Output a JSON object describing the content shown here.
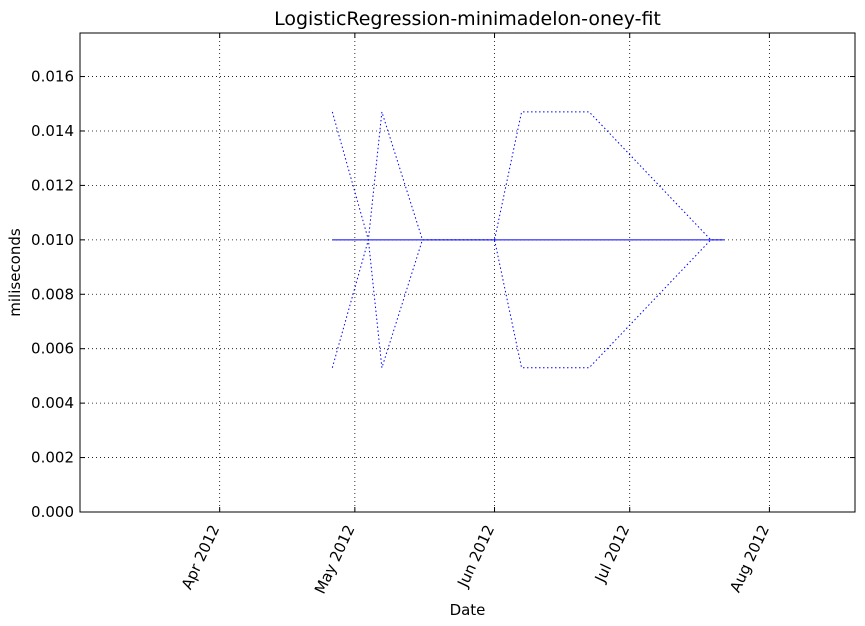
{
  "chart_data": {
    "type": "line",
    "title": "LogisticRegression-minimadelon-oney-fit",
    "xlabel": "Date",
    "ylabel": "miliseconds",
    "x_axis_kind": "date",
    "xlim": [
      "2012-03-01",
      "2012-08-20"
    ],
    "ylim": [
      0,
      0.0176
    ],
    "x_ticks": [
      {
        "date": "2012-04-01",
        "label": "Apr 2012"
      },
      {
        "date": "2012-05-01",
        "label": "May 2012"
      },
      {
        "date": "2012-06-01",
        "label": "Jun 2012"
      },
      {
        "date": "2012-07-01",
        "label": "Jul 2012"
      },
      {
        "date": "2012-08-01",
        "label": "Aug 2012"
      }
    ],
    "y_ticks": [
      {
        "value": 0.0,
        "label": "0.000"
      },
      {
        "value": 0.002,
        "label": "0.002"
      },
      {
        "value": 0.004,
        "label": "0.004"
      },
      {
        "value": 0.006,
        "label": "0.006"
      },
      {
        "value": 0.008,
        "label": "0.008"
      },
      {
        "value": 0.01,
        "label": "0.010"
      },
      {
        "value": 0.012,
        "label": "0.012"
      },
      {
        "value": 0.014,
        "label": "0.014"
      },
      {
        "value": 0.016,
        "label": "0.016"
      }
    ],
    "grid": true,
    "series": [
      {
        "style": "solid",
        "color": "#0000ff",
        "points": [
          {
            "x": "2012-04-26",
            "y": 0.01
          },
          {
            "x": "2012-05-04",
            "y": 0.01
          },
          {
            "x": "2012-05-07",
            "y": 0.01
          },
          {
            "x": "2012-05-16",
            "y": 0.01
          },
          {
            "x": "2012-06-01",
            "y": 0.01
          },
          {
            "x": "2012-06-07",
            "y": 0.01
          },
          {
            "x": "2012-06-22",
            "y": 0.01
          },
          {
            "x": "2012-07-19",
            "y": 0.01
          },
          {
            "x": "2012-07-22",
            "y": 0.01
          }
        ]
      },
      {
        "style": "dotted",
        "color": "#0000ff",
        "points": [
          {
            "x": "2012-04-26",
            "y": 0.0147
          },
          {
            "x": "2012-05-04",
            "y": 0.01
          },
          {
            "x": "2012-05-07",
            "y": 0.0147
          },
          {
            "x": "2012-05-16",
            "y": 0.01
          },
          {
            "x": "2012-06-01",
            "y": 0.01
          },
          {
            "x": "2012-06-07",
            "y": 0.0147
          },
          {
            "x": "2012-06-22",
            "y": 0.0147
          },
          {
            "x": "2012-07-19",
            "y": 0.01
          },
          {
            "x": "2012-07-22",
            "y": 0.01
          }
        ]
      },
      {
        "style": "dotted",
        "color": "#0000ff",
        "points": [
          {
            "x": "2012-04-26",
            "y": 0.0053
          },
          {
            "x": "2012-05-04",
            "y": 0.01
          },
          {
            "x": "2012-05-07",
            "y": 0.0053
          },
          {
            "x": "2012-05-16",
            "y": 0.01
          },
          {
            "x": "2012-06-01",
            "y": 0.01
          },
          {
            "x": "2012-06-07",
            "y": 0.0053
          },
          {
            "x": "2012-06-22",
            "y": 0.0053
          },
          {
            "x": "2012-07-19",
            "y": 0.01
          },
          {
            "x": "2012-07-22",
            "y": 0.01
          }
        ]
      }
    ]
  }
}
